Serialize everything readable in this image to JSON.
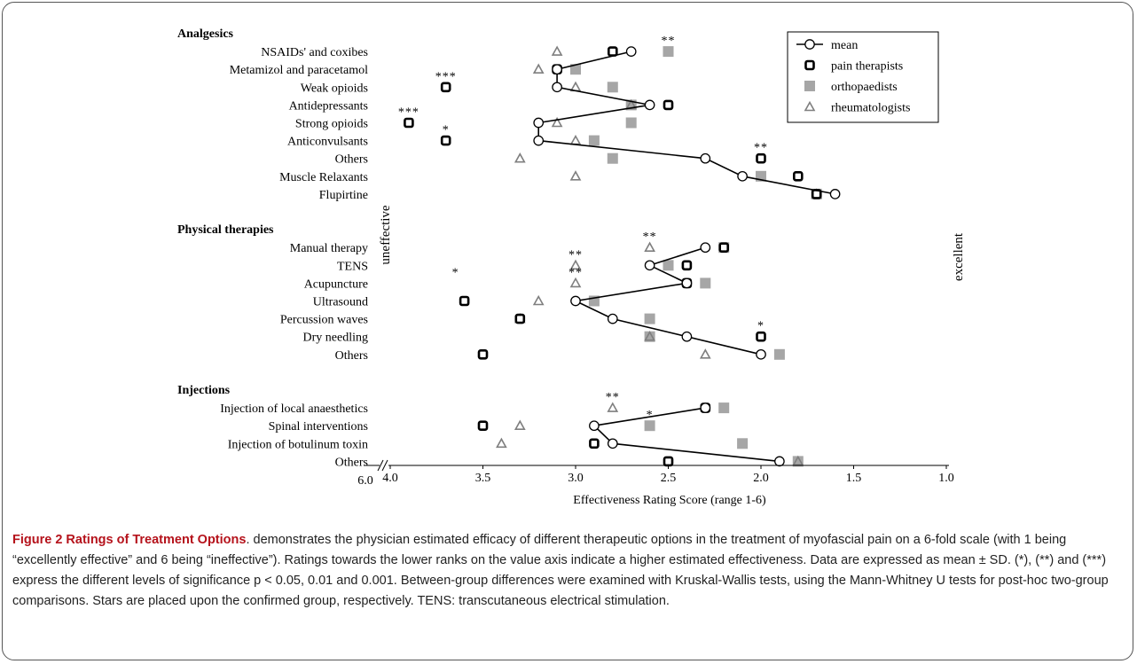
{
  "chart_data": {
    "type": "scatter",
    "xlabel": "Effectiveness Rating Score (range 1-6)",
    "x_axis_reversed": true,
    "x_axis_break": true,
    "x_ticks": [
      "6.0",
      "4.0",
      "3.5",
      "3.0",
      "2.5",
      "2.0",
      "1.5",
      "1.0"
    ],
    "xlim": [
      4.0,
      1.0
    ],
    "left_side_label": "uneffective",
    "right_side_label": "excellent",
    "legend": [
      "mean",
      "pain therapists",
      "orthopaedists",
      "rheumatologists"
    ],
    "groups": [
      {
        "name": "Analgesics",
        "items": [
          {
            "label": "NSAIDs' and coxibes",
            "mean": 2.7,
            "pain_therapists": 2.8,
            "orthopaedists": 2.5,
            "rheumatologists": 3.1,
            "sig": "**",
            "sig_group": "orthopaedists"
          },
          {
            "label": "Metamizol and paracetamol",
            "mean": 3.1,
            "pain_therapists": 3.1,
            "orthopaedists": 3.0,
            "rheumatologists": 3.2,
            "sig": "",
            "sig_group": ""
          },
          {
            "label": "Weak opioids",
            "mean": 3.1,
            "pain_therapists": 3.7,
            "orthopaedists": 2.8,
            "rheumatologists": 3.0,
            "sig": "***",
            "sig_group": "pain_therapists"
          },
          {
            "label": "Antidepressants",
            "mean": 2.6,
            "pain_therapists": 2.5,
            "orthopaedists": 2.7,
            "rheumatologists": 2.7,
            "sig": "",
            "sig_group": ""
          },
          {
            "label": "Strong opioids",
            "mean": 3.2,
            "pain_therapists": 3.9,
            "orthopaedists": 2.7,
            "rheumatologists": 3.1,
            "sig": "***",
            "sig_group": "pain_therapists"
          },
          {
            "label": "Anticonvulsants",
            "mean": 3.2,
            "pain_therapists": 3.7,
            "orthopaedists": 2.9,
            "rheumatologists": 3.0,
            "sig": "*",
            "sig_group": "pain_therapists"
          },
          {
            "label": "Others",
            "mean": 2.3,
            "pain_therapists": 2.0,
            "orthopaedists": 2.8,
            "rheumatologists": 3.3,
            "sig": "**",
            "sig_group": "pain_therapists"
          },
          {
            "label": "Muscle Relaxants",
            "mean": 2.1,
            "pain_therapists": 1.8,
            "orthopaedists": 2.0,
            "rheumatologists": 3.0,
            "sig": "",
            "sig_group": ""
          },
          {
            "label": "Flupirtine",
            "mean": 1.6,
            "pain_therapists": 1.7,
            "orthopaedists": 1.7,
            "rheumatologists": 1.7,
            "sig": "",
            "sig_group": ""
          }
        ]
      },
      {
        "name": "Physical therapies",
        "items": [
          {
            "label": "Manual therapy",
            "mean": 2.3,
            "pain_therapists": 2.2,
            "orthopaedists": 2.2,
            "rheumatologists": 2.6,
            "sig": "**",
            "sig_group": "rheumatologists"
          },
          {
            "label": "TENS",
            "mean": 2.6,
            "pain_therapists": 2.4,
            "orthopaedists": 2.5,
            "rheumatologists": 3.0,
            "sig": "**",
            "sig_group": "rheumatologists"
          },
          {
            "label": "Acupuncture",
            "mean": 2.4,
            "pain_therapists": 2.4,
            "orthopaedists": 2.3,
            "rheumatologists": 3.0,
            "sig": "**",
            "sig_group": "rheumatologists",
            "sig2": "*",
            "sig2_x": 3.65
          },
          {
            "label": "Ultrasound",
            "mean": 3.0,
            "pain_therapists": 3.6,
            "orthopaedists": 2.9,
            "rheumatologists": 3.2,
            "sig": "",
            "sig_group": ""
          },
          {
            "label": "Percussion waves",
            "mean": 2.8,
            "pain_therapists": 3.3,
            "orthopaedists": 2.6,
            "rheumatologists": 3.3,
            "sig": "",
            "sig_group": ""
          },
          {
            "label": "Dry needling",
            "mean": 2.4,
            "pain_therapists": 2.0,
            "orthopaedists": 2.6,
            "rheumatologists": 2.6,
            "sig": "*",
            "sig_group": "pain_therapists"
          },
          {
            "label": "Others",
            "mean": 2.0,
            "pain_therapists": 3.5,
            "orthopaedists": 1.9,
            "rheumatologists": 2.3,
            "sig": "",
            "sig_group": ""
          }
        ]
      },
      {
        "name": "Injections",
        "items": [
          {
            "label": "Injection of local anaesthetics",
            "mean": 2.3,
            "pain_therapists": 2.3,
            "orthopaedists": 2.2,
            "rheumatologists": 2.8,
            "sig": "**",
            "sig_group": "rheumatologists"
          },
          {
            "label": "Spinal interventions",
            "mean": 2.9,
            "pain_therapists": 3.5,
            "orthopaedists": 2.6,
            "rheumatologists": 3.3,
            "sig": "*",
            "sig_group": "orthopaedists"
          },
          {
            "label": "Injection of botulinum toxin",
            "mean": 2.8,
            "pain_therapists": 2.9,
            "orthopaedists": 2.1,
            "rheumatologists": 3.4,
            "sig": "",
            "sig_group": ""
          },
          {
            "label": "Others",
            "mean": 1.9,
            "pain_therapists": 2.5,
            "orthopaedists": 1.8,
            "rheumatologists": 1.8,
            "sig": "",
            "sig_group": ""
          }
        ]
      }
    ]
  },
  "caption": {
    "title": "Figure 2 Ratings of Treatment Options",
    "text": ". demonstrates the physician estimated efficacy of different therapeutic options in the treatment of myofascial pain on a 6-fold scale (with 1 being “excellently effective” and 6 being “ineffective”). Ratings towards the lower ranks on the value axis indicate a higher estimated effectiveness. Data are expressed as mean ± SD. (*), (**) and (***) express the different levels of significance p < 0.05, 0.01 and 0.001. Between-group differences were examined with Kruskal-Wallis tests, using the Mann-Whitney U tests for post-hoc two-group comparisons. Stars are placed upon the confirmed group, respectively. TENS: transcutaneous electrical stimulation."
  },
  "colors": {
    "caption_title": "#b5121b",
    "orthopaedists": "#a6a6a6",
    "rheumatologists": "#7f7f7f",
    "pain_therapists": "#000000"
  }
}
